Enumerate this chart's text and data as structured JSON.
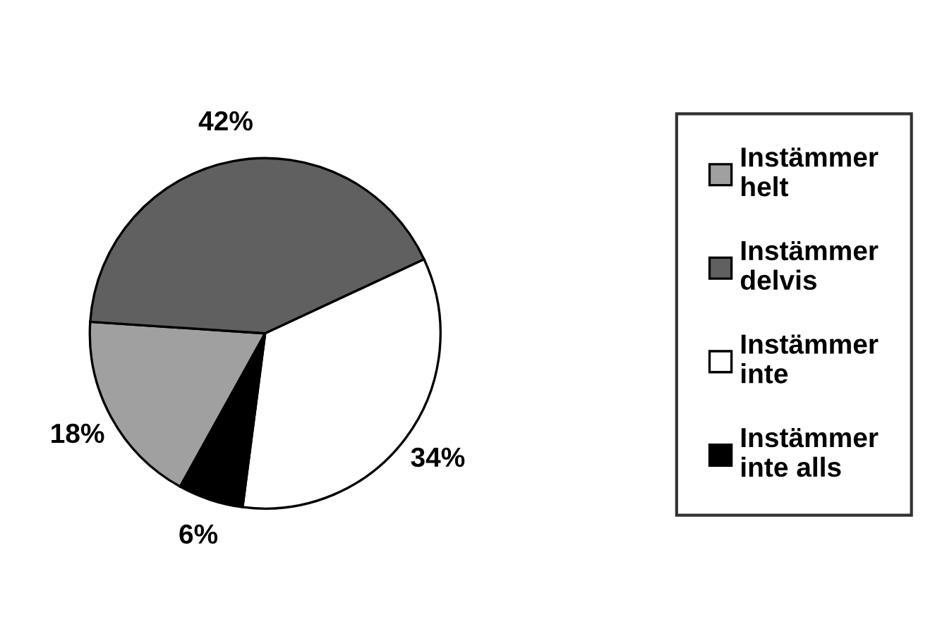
{
  "chart_data": {
    "type": "pie",
    "categories": [
      "Instämmer helt",
      "Instämmer delvis",
      "Instämmer inte",
      "Instämmer inte alls"
    ],
    "values": [
      18,
      42,
      34,
      6
    ],
    "value_labels": [
      "18%",
      "42%",
      "34%",
      "6%"
    ],
    "colors": [
      "#a0a0a0",
      "#606060",
      "#ffffff",
      "#000000"
    ],
    "legend": "right"
  }
}
